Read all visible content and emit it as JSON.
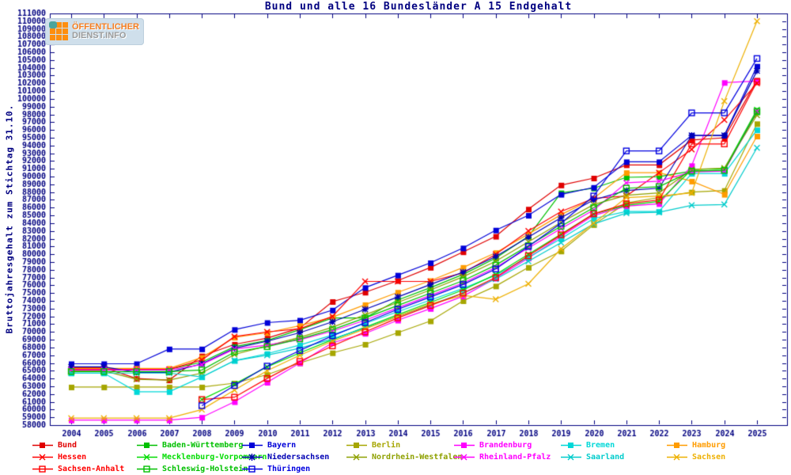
{
  "title": "Bund und alle 16 Bundesländer A 15 Endgehalt",
  "logo": {
    "line1": "ÖFFENTLICHER",
    "line2": "DIENST.INFO",
    "bg_color": "#cfdfeb",
    "tile_color": "#ff8e0e",
    "blob_color": "#4ba49b",
    "line1_color": "#f57e20",
    "line2_color": "#9b9b9b"
  },
  "colors": {
    "axis": "#000080",
    "tick_text": "#000080",
    "background": "#ffffff"
  },
  "y_axis": {
    "label": "Bruttojahresgehalt zum Stichtag 31.10.",
    "min": 58000,
    "max": 111000,
    "step": 1000
  },
  "x_axis": {
    "years": [
      2004,
      2005,
      2006,
      2007,
      2008,
      2009,
      2010,
      2011,
      2012,
      2013,
      2014,
      2015,
      2016,
      2017,
      2018,
      2019,
      2020,
      2021,
      2022,
      2023,
      2024,
      2025
    ]
  },
  "chart_data": {
    "type": "line",
    "title": "Bund und alle 16 Bundesländer A 15 Endgehalt",
    "xlabel": "",
    "ylabel": "Bruttojahresgehalt zum Stichtag 31.10.",
    "ylim": [
      58000,
      111000
    ],
    "grid": false,
    "legend_position": "bottom",
    "x": [
      2004,
      2005,
      2006,
      2007,
      2008,
      2009,
      2010,
      2011,
      2012,
      2013,
      2014,
      2015,
      2016,
      2017,
      2018,
      2019,
      2020,
      2021,
      2022,
      2023,
      2024,
      2025
    ],
    "series": [
      {
        "name": "Bund",
        "color": "#e00000",
        "marker": "sq",
        "values": [
          65400,
          65400,
          64000,
          63800,
          66900,
          68400,
          69200,
          70500,
          73900,
          75100,
          76600,
          78300,
          80300,
          82300,
          85800,
          88900,
          89800,
          91500,
          91500,
          94700,
          95000,
          102400
        ]
      },
      {
        "name": "Baden-Württemberg",
        "color": "#00c000",
        "marker": "sq",
        "values": [
          65200,
          65200,
          65200,
          65200,
          66100,
          68100,
          68900,
          70300,
          71800,
          71800,
          74100,
          75700,
          77400,
          79500,
          82300,
          87900,
          88500,
          89900,
          90000,
          90700,
          90800,
          98300
        ]
      },
      {
        "name": "Bayern",
        "color": "#0000d8",
        "marker": "sq",
        "values": [
          65900,
          65900,
          65900,
          67800,
          67800,
          70300,
          71200,
          71500,
          72800,
          75700,
          77300,
          78900,
          80800,
          83100,
          85000,
          87700,
          88600,
          91900,
          91900,
          95300,
          95300,
          104200
        ]
      },
      {
        "name": "Berlin",
        "color": "#a6a600",
        "marker": "sq",
        "values": [
          62900,
          62900,
          62900,
          62900,
          62900,
          63400,
          64500,
          66000,
          67300,
          68400,
          69900,
          71400,
          74000,
          75900,
          78300,
          80400,
          83800,
          86600,
          87300,
          88000,
          88200,
          96800
        ]
      },
      {
        "name": "Brandenburg",
        "color": "#ff00ff",
        "marker": "sq",
        "values": [
          58650,
          58650,
          58650,
          58650,
          59000,
          61000,
          63500,
          66000,
          68600,
          69800,
          71500,
          73000,
          74600,
          76900,
          79500,
          82300,
          85000,
          86200,
          86500,
          91400,
          102100,
          102300
        ]
      },
      {
        "name": "Bremen",
        "color": "#00d8d8",
        "marker": "sq",
        "values": [
          64700,
          64700,
          62300,
          62300,
          64200,
          66300,
          67200,
          68300,
          69600,
          71100,
          72600,
          74100,
          75600,
          77300,
          79600,
          82000,
          84600,
          85500,
          85500,
          90400,
          90400,
          96000
        ]
      },
      {
        "name": "Hamburg",
        "color": "#ff9c00",
        "marker": "sq",
        "values": [
          65300,
          65300,
          65300,
          65300,
          66700,
          69300,
          69900,
          70800,
          71900,
          73500,
          75100,
          76600,
          78300,
          80200,
          82600,
          85100,
          87200,
          90500,
          90500,
          89400,
          87700,
          95200
        ]
      },
      {
        "name": "Hessen",
        "color": "#ff0000",
        "marker": "x",
        "values": [
          65170,
          65170,
          65170,
          65170,
          66400,
          69400,
          70000,
          70400,
          72000,
          76500,
          76500,
          76500,
          77600,
          80000,
          83000,
          85500,
          87200,
          87500,
          90500,
          93500,
          97300,
          102000
        ]
      },
      {
        "name": "Mecklenburg-Vorpommern",
        "color": "#00dc00",
        "marker": "x",
        "values": [
          null,
          null,
          null,
          null,
          61300,
          63300,
          65500,
          67300,
          69000,
          70600,
          72200,
          73800,
          75400,
          77400,
          80000,
          82600,
          85200,
          86300,
          86800,
          90900,
          91000,
          98600
        ]
      },
      {
        "name": "Niedersachsen",
        "color": "#0000b4",
        "marker": "star",
        "values": [
          65500,
          65500,
          64800,
          64800,
          65900,
          67900,
          68800,
          69900,
          71300,
          72900,
          74500,
          76100,
          77700,
          79700,
          82200,
          84700,
          87000,
          88200,
          88500,
          95300,
          95300,
          103600
        ]
      },
      {
        "name": "Nordrhein-Westfalen",
        "color": "#8ea000",
        "marker": "x",
        "values": [
          65000,
          65000,
          63900,
          63800,
          64700,
          67100,
          68200,
          69300,
          70600,
          72200,
          73800,
          75400,
          77100,
          79100,
          81600,
          84100,
          86400,
          87600,
          87900,
          90900,
          91100,
          97900
        ]
      },
      {
        "name": "Rheinland-Pfalz",
        "color": "#ff00ff",
        "marker": "x",
        "values": [
          65100,
          65100,
          65100,
          65100,
          65800,
          67800,
          68300,
          69000,
          70100,
          71500,
          73100,
          74700,
          76300,
          78300,
          80800,
          83300,
          85700,
          89200,
          89400,
          90600,
          90700,
          98400
        ]
      },
      {
        "name": "Saarland",
        "color": "#00cccc",
        "marker": "x",
        "values": [
          64700,
          64700,
          64700,
          64700,
          64200,
          66300,
          67000,
          67900,
          69100,
          70500,
          72000,
          73500,
          75000,
          76800,
          79100,
          81500,
          83900,
          85300,
          85400,
          86300,
          86400,
          93700
        ]
      },
      {
        "name": "Sachsen",
        "color": "#eeb000",
        "marker": "x",
        "values": [
          58900,
          58900,
          58900,
          58900,
          60000,
          62500,
          65000,
          67000,
          68800,
          70400,
          72000,
          73600,
          74700,
          74200,
          76200,
          80700,
          84000,
          87300,
          87500,
          87900,
          99700,
          110000
        ]
      },
      {
        "name": "Sachsen-Anhalt",
        "color": "#ff0000",
        "marker": "osq",
        "values": [
          null,
          null,
          null,
          null,
          61300,
          61600,
          64000,
          66200,
          68200,
          70000,
          71800,
          73400,
          75000,
          77000,
          79800,
          82500,
          85200,
          86500,
          87000,
          94200,
          94200,
          102200
        ]
      },
      {
        "name": "Schleswig-Holstein",
        "color": "#00c000",
        "marker": "osq",
        "values": [
          64900,
          64900,
          64900,
          64900,
          65100,
          67400,
          68100,
          69100,
          70300,
          71800,
          73400,
          75000,
          76600,
          78600,
          81100,
          83600,
          86000,
          88500,
          88700,
          90700,
          90800,
          98400
        ]
      },
      {
        "name": "Thüringen",
        "color": "#0000e0",
        "marker": "osq",
        "values": [
          null,
          null,
          null,
          null,
          60500,
          63100,
          65600,
          67600,
          69500,
          71200,
          72900,
          74500,
          76100,
          78100,
          81000,
          84000,
          87500,
          93300,
          93300,
          98200,
          98200,
          105200
        ]
      }
    ],
    "legend_grid": [
      [
        "Bund",
        "Hessen",
        "Sachsen-Anhalt"
      ],
      [
        "Baden-Württemberg",
        "Mecklenburg-Vorpommern",
        "Schleswig-Holstein"
      ],
      [
        "Bayern",
        "Niedersachsen",
        "Thüringen"
      ],
      [
        "Berlin",
        "Nordrhein-Westfalen"
      ],
      [
        "Brandenburg",
        "Rheinland-Pfalz"
      ],
      [
        "Bremen",
        "Saarland"
      ],
      [
        "Hamburg",
        "Sachsen"
      ]
    ]
  }
}
